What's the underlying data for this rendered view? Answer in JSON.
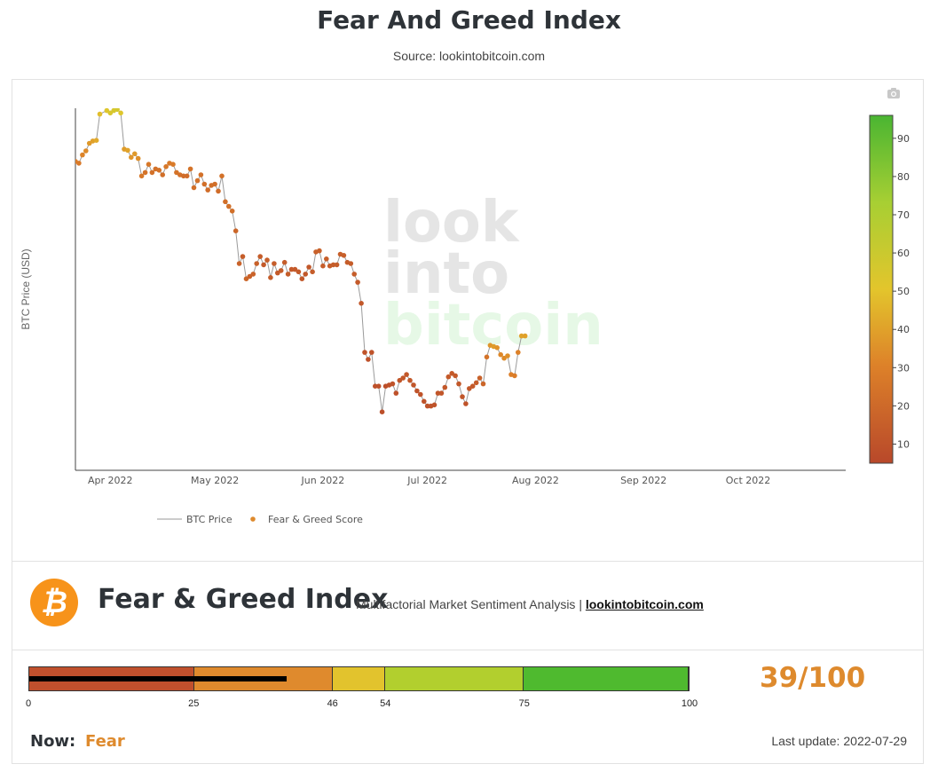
{
  "page": {
    "title": "Fear And Greed Index",
    "source": "Source: lookintobitcoin.com"
  },
  "watermark": [
    "look",
    "into",
    "bitcoin"
  ],
  "chart_data": {
    "type": "scatter",
    "ylabel": "BTC Price (USD)",
    "x_ticks": [
      "Apr 2022",
      "May 2022",
      "Jun 2022",
      "Jul 2022",
      "Aug 2022",
      "Sep 2022",
      "Oct 2022"
    ],
    "x_range": [
      "2022-03-22",
      "2022-10-29"
    ],
    "y_range": [
      16000,
      47000
    ],
    "colorbar": {
      "ticks": [
        10,
        20,
        30,
        40,
        50,
        60,
        70,
        80,
        90
      ],
      "range": [
        5,
        96
      ]
    },
    "legend": {
      "placement": "bottom",
      "items": [
        "BTC Price",
        "Fear & Greed Score"
      ]
    },
    "series": [
      {
        "name": "BTC Price",
        "points": [
          {
            "date": "2022-03-22",
            "price": 42450,
            "score": 28
          },
          {
            "date": "2022-03-23",
            "price": 42300,
            "score": 27
          },
          {
            "date": "2022-03-24",
            "price": 43000,
            "score": 31
          },
          {
            "date": "2022-03-25",
            "price": 43350,
            "score": 33
          },
          {
            "date": "2022-03-26",
            "price": 44000,
            "score": 37
          },
          {
            "date": "2022-03-27",
            "price": 44200,
            "score": 39
          },
          {
            "date": "2022-03-28",
            "price": 44250,
            "score": 42
          },
          {
            "date": "2022-03-29",
            "price": 46500,
            "score": 48
          },
          {
            "date": "2022-03-31",
            "price": 46800,
            "score": 52
          },
          {
            "date": "2022-04-01",
            "price": 46600,
            "score": 54
          },
          {
            "date": "2022-04-02",
            "price": 46800,
            "score": 55
          },
          {
            "date": "2022-04-03",
            "price": 46900,
            "score": 56
          },
          {
            "date": "2022-04-04",
            "price": 46600,
            "score": 52
          },
          {
            "date": "2022-04-05",
            "price": 43500,
            "score": 38
          },
          {
            "date": "2022-04-06",
            "price": 43400,
            "score": 40
          },
          {
            "date": "2022-04-07",
            "price": 42800,
            "score": 36
          },
          {
            "date": "2022-04-08",
            "price": 43100,
            "score": 37
          },
          {
            "date": "2022-04-09",
            "price": 42700,
            "score": 34
          },
          {
            "date": "2022-04-10",
            "price": 41200,
            "score": 26
          },
          {
            "date": "2022-04-11",
            "price": 41500,
            "score": 24
          },
          {
            "date": "2022-04-12",
            "price": 42200,
            "score": 26
          },
          {
            "date": "2022-04-13",
            "price": 41500,
            "score": 23
          },
          {
            "date": "2022-04-14",
            "price": 41800,
            "score": 23
          },
          {
            "date": "2022-04-15",
            "price": 41700,
            "score": 24
          },
          {
            "date": "2022-04-16",
            "price": 41300,
            "score": 22
          },
          {
            "date": "2022-04-17",
            "price": 42000,
            "score": 26
          },
          {
            "date": "2022-04-18",
            "price": 42300,
            "score": 27
          },
          {
            "date": "2022-04-19",
            "price": 42200,
            "score": 27
          },
          {
            "date": "2022-04-20",
            "price": 41500,
            "score": 24
          },
          {
            "date": "2022-04-21",
            "price": 41300,
            "score": 23
          },
          {
            "date": "2022-04-22",
            "price": 41200,
            "score": 21
          },
          {
            "date": "2022-04-23",
            "price": 41200,
            "score": 21
          },
          {
            "date": "2022-04-24",
            "price": 41800,
            "score": 24
          },
          {
            "date": "2022-04-25",
            "price": 40200,
            "score": 22
          },
          {
            "date": "2022-04-26",
            "price": 40800,
            "score": 23
          },
          {
            "date": "2022-04-27",
            "price": 41300,
            "score": 23
          },
          {
            "date": "2022-04-28",
            "price": 40500,
            "score": 22
          },
          {
            "date": "2022-04-29",
            "price": 40000,
            "score": 21
          },
          {
            "date": "2022-04-30",
            "price": 40400,
            "score": 22
          },
          {
            "date": "2022-05-01",
            "price": 40500,
            "score": 22
          },
          {
            "date": "2022-05-02",
            "price": 39900,
            "score": 21
          },
          {
            "date": "2022-05-03",
            "price": 41200,
            "score": 23
          },
          {
            "date": "2022-05-04",
            "price": 39000,
            "score": 22
          },
          {
            "date": "2022-05-05",
            "price": 38600,
            "score": 23
          },
          {
            "date": "2022-05-06",
            "price": 38200,
            "score": 22
          },
          {
            "date": "2022-05-07",
            "price": 36500,
            "score": 18
          },
          {
            "date": "2022-05-08",
            "price": 33700,
            "score": 17
          },
          {
            "date": "2022-05-09",
            "price": 34300,
            "score": 14
          },
          {
            "date": "2022-05-10",
            "price": 32400,
            "score": 18
          },
          {
            "date": "2022-05-11",
            "price": 32600,
            "score": 16
          },
          {
            "date": "2022-05-12",
            "price": 32800,
            "score": 17
          },
          {
            "date": "2022-05-13",
            "price": 33700,
            "score": 16
          },
          {
            "date": "2022-05-14",
            "price": 34300,
            "score": 14
          },
          {
            "date": "2022-05-15",
            "price": 33600,
            "score": 13
          },
          {
            "date": "2022-05-16",
            "price": 34000,
            "score": 15
          },
          {
            "date": "2022-05-17",
            "price": 32500,
            "score": 14
          },
          {
            "date": "2022-05-18",
            "price": 33700,
            "score": 14
          },
          {
            "date": "2022-05-19",
            "price": 32900,
            "score": 13
          },
          {
            "date": "2022-05-20",
            "price": 33100,
            "score": 14
          },
          {
            "date": "2022-05-21",
            "price": 33800,
            "score": 14
          },
          {
            "date": "2022-05-22",
            "price": 32800,
            "score": 14
          },
          {
            "date": "2022-05-23",
            "price": 33200,
            "score": 13
          },
          {
            "date": "2022-05-24",
            "price": 33200,
            "score": 13
          },
          {
            "date": "2022-05-25",
            "price": 33000,
            "score": 13
          },
          {
            "date": "2022-05-26",
            "price": 32400,
            "score": 12
          },
          {
            "date": "2022-05-27",
            "price": 32800,
            "score": 12
          },
          {
            "date": "2022-05-28",
            "price": 33400,
            "score": 12
          },
          {
            "date": "2022-05-29",
            "price": 33000,
            "score": 14
          },
          {
            "date": "2022-05-30",
            "price": 34700,
            "score": 16
          },
          {
            "date": "2022-05-31",
            "price": 34800,
            "score": 16
          },
          {
            "date": "2022-06-01",
            "price": 33500,
            "score": 14
          },
          {
            "date": "2022-06-02",
            "price": 34100,
            "score": 15
          },
          {
            "date": "2022-06-03",
            "price": 33500,
            "score": 14
          },
          {
            "date": "2022-06-04",
            "price": 33600,
            "score": 14
          },
          {
            "date": "2022-06-05",
            "price": 33600,
            "score": 14
          },
          {
            "date": "2022-06-06",
            "price": 34500,
            "score": 15
          },
          {
            "date": "2022-06-07",
            "price": 34400,
            "score": 15
          },
          {
            "date": "2022-06-08",
            "price": 33800,
            "score": 14
          },
          {
            "date": "2022-06-09",
            "price": 33700,
            "score": 14
          },
          {
            "date": "2022-06-10",
            "price": 32800,
            "score": 14
          },
          {
            "date": "2022-06-11",
            "price": 32100,
            "score": 13
          },
          {
            "date": "2022-06-12",
            "price": 30300,
            "score": 12
          },
          {
            "date": "2022-06-13",
            "price": 26100,
            "score": 10
          },
          {
            "date": "2022-06-14",
            "price": 25500,
            "score": 9
          },
          {
            "date": "2022-06-15",
            "price": 26100,
            "score": 10
          },
          {
            "date": "2022-06-16",
            "price": 23200,
            "score": 9
          },
          {
            "date": "2022-06-17",
            "price": 23200,
            "score": 9
          },
          {
            "date": "2022-06-18",
            "price": 21000,
            "score": 8
          },
          {
            "date": "2022-06-19",
            "price": 23200,
            "score": 8
          },
          {
            "date": "2022-06-20",
            "price": 23300,
            "score": 9
          },
          {
            "date": "2022-06-21",
            "price": 23400,
            "score": 10
          },
          {
            "date": "2022-06-22",
            "price": 22600,
            "score": 9
          },
          {
            "date": "2022-06-23",
            "price": 23700,
            "score": 11
          },
          {
            "date": "2022-06-24",
            "price": 23900,
            "score": 12
          },
          {
            "date": "2022-06-25",
            "price": 24200,
            "score": 12
          },
          {
            "date": "2022-06-26",
            "price": 23700,
            "score": 12
          },
          {
            "date": "2022-06-27",
            "price": 23300,
            "score": 11
          },
          {
            "date": "2022-06-28",
            "price": 22800,
            "score": 10
          },
          {
            "date": "2022-06-29",
            "price": 22500,
            "score": 10
          },
          {
            "date": "2022-06-30",
            "price": 21900,
            "score": 10
          },
          {
            "date": "2022-07-01",
            "price": 21500,
            "score": 10
          },
          {
            "date": "2022-07-02",
            "price": 21500,
            "score": 10
          },
          {
            "date": "2022-07-03",
            "price": 21600,
            "score": 10
          },
          {
            "date": "2022-07-04",
            "price": 22600,
            "score": 11
          },
          {
            "date": "2022-07-05",
            "price": 22600,
            "score": 11
          },
          {
            "date": "2022-07-06",
            "price": 23100,
            "score": 12
          },
          {
            "date": "2022-07-07",
            "price": 24000,
            "score": 13
          },
          {
            "date": "2022-07-08",
            "price": 24300,
            "score": 13
          },
          {
            "date": "2022-07-09",
            "price": 24100,
            "score": 13
          },
          {
            "date": "2022-07-10",
            "price": 23400,
            "score": 12
          },
          {
            "date": "2022-07-11",
            "price": 22300,
            "score": 11
          },
          {
            "date": "2022-07-12",
            "price": 21700,
            "score": 10
          },
          {
            "date": "2022-07-13",
            "price": 23000,
            "score": 12
          },
          {
            "date": "2022-07-14",
            "price": 23200,
            "score": 13
          },
          {
            "date": "2022-07-15",
            "price": 23500,
            "score": 14
          },
          {
            "date": "2022-07-16",
            "price": 23900,
            "score": 16
          },
          {
            "date": "2022-07-17",
            "price": 23400,
            "score": 18
          },
          {
            "date": "2022-07-18",
            "price": 25700,
            "score": 24
          },
          {
            "date": "2022-07-19",
            "price": 26700,
            "score": 36
          },
          {
            "date": "2022-07-20",
            "price": 26600,
            "score": 38
          },
          {
            "date": "2022-07-21",
            "price": 26500,
            "score": 35
          },
          {
            "date": "2022-07-22",
            "price": 25900,
            "score": 32
          },
          {
            "date": "2022-07-23",
            "price": 25600,
            "score": 33
          },
          {
            "date": "2022-07-24",
            "price": 25800,
            "score": 34
          },
          {
            "date": "2022-07-25",
            "price": 24200,
            "score": 29
          },
          {
            "date": "2022-07-26",
            "price": 24100,
            "score": 28
          },
          {
            "date": "2022-07-27",
            "price": 26100,
            "score": 30
          },
          {
            "date": "2022-07-28",
            "price": 27500,
            "score": 40
          },
          {
            "date": "2022-07-29",
            "price": 27500,
            "score": 39
          }
        ]
      },
      {
        "name": "Fear & Greed Score"
      }
    ]
  },
  "footer": {
    "brand_title": "Fear & Greed Index",
    "subtitle": "Multifactorial Market Sentiment Analysis |",
    "link": "lookintobitcoin.com",
    "logo_symbol": "₿",
    "gauge": {
      "ticks": [
        0,
        25,
        46,
        54,
        75,
        100
      ],
      "segments": [
        {
          "from": 0,
          "to": 25,
          "color": "#c0502d"
        },
        {
          "from": 25,
          "to": 46,
          "color": "#df8a2d"
        },
        {
          "from": 46,
          "to": 54,
          "color": "#e2c32d"
        },
        {
          "from": 54,
          "to": 75,
          "color": "#b2cf2e"
        },
        {
          "from": 75,
          "to": 100,
          "color": "#4fba2f"
        }
      ],
      "value": 39,
      "max": 100
    },
    "score_text": "39/100",
    "now_label": "Now:",
    "now_value": "Fear",
    "last_update_label": "Last update:",
    "last_update_value": "2022-07-29"
  },
  "colors": {
    "accent": "#de8a2d",
    "line": "#9a9a9a",
    "axis": "#444444"
  }
}
